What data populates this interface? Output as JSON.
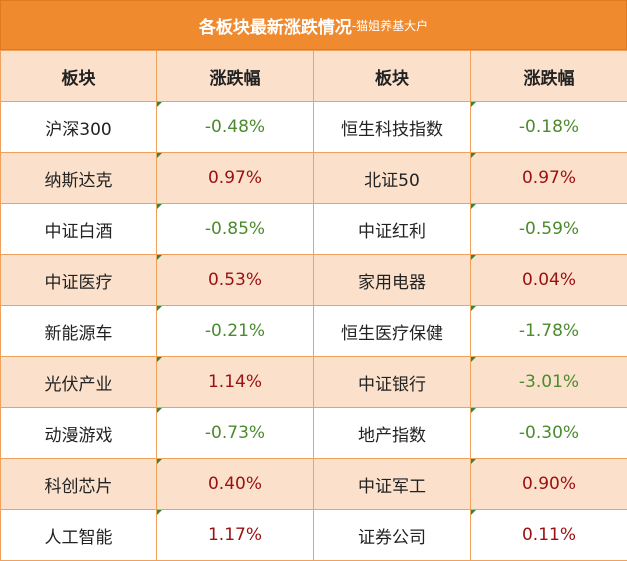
{
  "title": {
    "main": "各板块最新涨跌情况",
    "suffix": "-猫姐养基大户"
  },
  "headers": [
    "板块",
    "涨跌幅",
    "板块",
    "涨跌幅"
  ],
  "rows": [
    {
      "left_name": "沪深300",
      "left_val": "-0.48%",
      "right_name": "恒生科技指数",
      "right_val": "-0.18%"
    },
    {
      "left_name": "纳斯达克",
      "left_val": "0.97%",
      "right_name": "北证50",
      "right_val": "0.97%"
    },
    {
      "left_name": "中证白酒",
      "left_val": "-0.85%",
      "right_name": "中证红利",
      "right_val": "-0.59%"
    },
    {
      "left_name": "中证医疗",
      "left_val": "0.53%",
      "right_name": "家用电器",
      "right_val": "0.04%"
    },
    {
      "left_name": "新能源车",
      "left_val": "-0.21%",
      "right_name": "恒生医疗保健",
      "right_val": "-1.78%"
    },
    {
      "left_name": "光伏产业",
      "left_val": "1.14%",
      "right_name": "中证银行",
      "right_val": "-3.01%"
    },
    {
      "left_name": "动漫游戏",
      "left_val": "-0.73%",
      "right_name": "地产指数",
      "right_val": "-0.30%"
    },
    {
      "left_name": "科创芯片",
      "left_val": "0.40%",
      "right_name": "中证军工",
      "right_val": "0.90%"
    },
    {
      "left_name": "人工智能",
      "left_val": "1.17%",
      "right_name": "证券公司",
      "right_val": "0.11%"
    }
  ],
  "colors": {
    "header_bar": "#f08a2e",
    "alt_row": "#fbe1cc",
    "negative": "#4c8a2e",
    "positive": "#9a1010"
  }
}
